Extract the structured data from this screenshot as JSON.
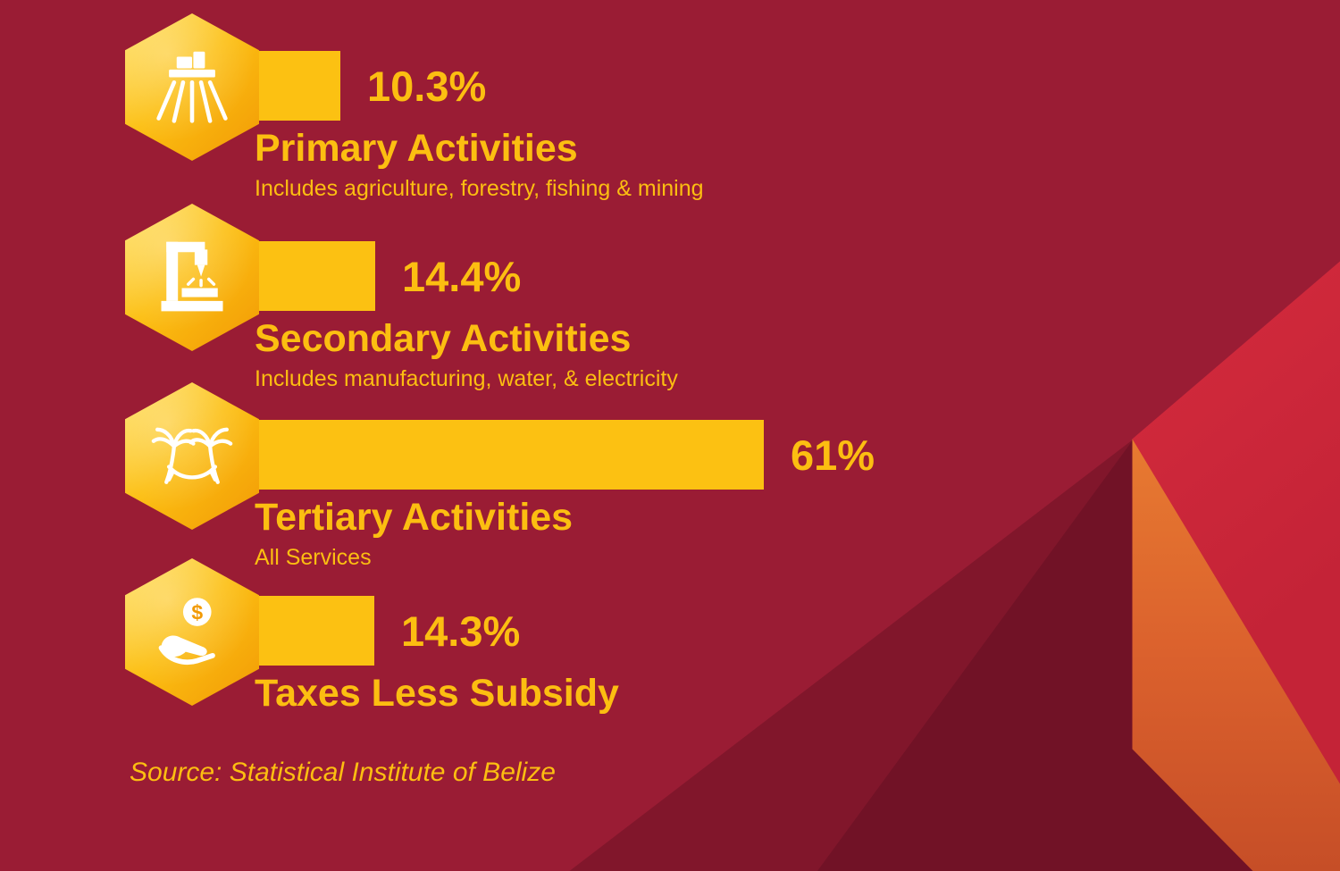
{
  "page": {
    "source": "Source: Statistical Institute of Belize"
  },
  "colors": {
    "background": "#9A1C34",
    "gold": "#FCBE11",
    "bar": "#FCC112",
    "hex_light": "#FFDE59",
    "hex_mid": "#FCBF12",
    "hex_dark": "#F29A05",
    "red_accent": "#DE3040",
    "orange_accent": "#F6A13C"
  },
  "rows": [
    {
      "icon": "agriculture-field-icon",
      "percent": "10.3%",
      "value": 10.3,
      "title": "Primary Activities",
      "subtitle": "Includes agriculture, forestry, fishing & mining"
    },
    {
      "icon": "manufacturing-machine-icon",
      "percent": "14.4%",
      "value": 14.4,
      "title": "Secondary Activities",
      "subtitle": "Includes manufacturing, water, & electricity"
    },
    {
      "icon": "palm-hammock-icon",
      "percent": "61%",
      "value": 61,
      "title": "Tertiary Activities",
      "subtitle": "All Services"
    },
    {
      "icon": "hand-coin-icon",
      "percent": "14.3%",
      "value": 14.3,
      "title": "Taxes Less Subsidy",
      "subtitle": ""
    }
  ],
  "chart_data": {
    "type": "bar",
    "orientation": "horizontal",
    "categories": [
      "Primary Activities",
      "Secondary Activities",
      "Tertiary Activities",
      "Taxes Less Subsidy"
    ],
    "values": [
      10.3,
      14.4,
      61,
      14.3
    ],
    "value_labels": [
      "10.3%",
      "14.4%",
      "61%",
      "14.3%"
    ],
    "category_notes": [
      "Includes agriculture, forestry, fishing & mining",
      "Includes manufacturing, water, & electricity",
      "All Services",
      ""
    ],
    "title": "",
    "xlabel": "",
    "ylabel": "",
    "xlim": [
      0,
      100
    ],
    "grid": false,
    "legend": false,
    "source": "Source: Statistical Institute of Belize"
  }
}
